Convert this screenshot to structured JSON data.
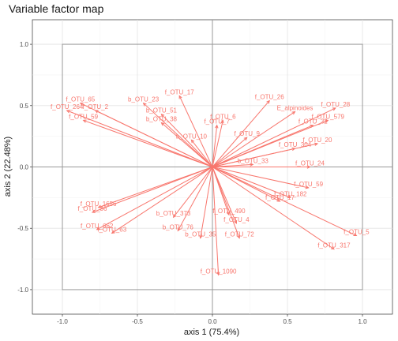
{
  "chart_data": {
    "type": "scatter",
    "title": "Variable factor map",
    "xlabel": "axis 1 (75.4%)",
    "ylabel": "axis 2 (22.48%)",
    "xlim": [
      -1.2,
      1.2
    ],
    "ylim": [
      -1.2,
      1.2
    ],
    "x_ticks": [
      -1.0,
      -0.5,
      0.0,
      0.5,
      1.0
    ],
    "y_ticks": [
      -1.0,
      -0.5,
      0.0,
      0.5,
      1.0
    ],
    "x_tick_labels": [
      "-1.0",
      "-0.5",
      "0.0",
      "0.5",
      "1.0"
    ],
    "y_tick_labels": [
      "-1.0",
      "-0.5",
      "0.0",
      "0.5",
      "1.0"
    ],
    "grid": true,
    "arrow_color": "#f8766d",
    "frame_color": "#999999",
    "variables": [
      {
        "label": "f_OTU_65",
        "x": -0.88,
        "y": 0.52
      },
      {
        "label": "f_OTU_264",
        "x": -0.97,
        "y": 0.46
      },
      {
        "label": "f_OTU_2",
        "x": -0.78,
        "y": 0.46
      },
      {
        "label": "f_OTU_59",
        "x": -0.86,
        "y": 0.38
      },
      {
        "label": "b_OTU_23",
        "x": -0.46,
        "y": 0.52
      },
      {
        "label": "b_OTU_51",
        "x": -0.34,
        "y": 0.43
      },
      {
        "label": "b_OTU_38",
        "x": -0.34,
        "y": 0.36
      },
      {
        "label": "f_OTU_17",
        "x": -0.22,
        "y": 0.58
      },
      {
        "label": "f_OTU_6",
        "x": 0.07,
        "y": 0.38
      },
      {
        "label": "f_OTU_7",
        "x": 0.03,
        "y": 0.34
      },
      {
        "label": "f_OTU_26",
        "x": 0.38,
        "y": 0.54
      },
      {
        "label": "f_OTU_28",
        "x": 0.82,
        "y": 0.48
      },
      {
        "label": "E_alpinoides",
        "x": 0.55,
        "y": 0.45
      },
      {
        "label": "f_OTU_579",
        "x": 0.77,
        "y": 0.38
      },
      {
        "label": "f_OTU_32",
        "x": 0.67,
        "y": 0.34
      },
      {
        "label": "f_OTU_20",
        "x": 0.7,
        "y": 0.19
      },
      {
        "label": "f_OTU_304",
        "x": 0.55,
        "y": 0.15
      },
      {
        "label": "f_OTU_24",
        "x": 0.65,
        "y": 0.0
      },
      {
        "label": "f_OTU_59",
        "x": 0.64,
        "y": -0.17
      },
      {
        "label": "f_OTU_182",
        "x": 0.52,
        "y": -0.25
      },
      {
        "label": "f_OTU_5",
        "x": 0.96,
        "y": -0.56
      },
      {
        "label": "f_OTU_317",
        "x": 0.81,
        "y": -0.67
      },
      {
        "label": "f_OTU_1090",
        "x": 0.04,
        "y": -0.88
      },
      {
        "label": "f_OTU_72",
        "x": 0.18,
        "y": -0.58
      },
      {
        "label": "b_OTU_35",
        "x": -0.08,
        "y": -0.58
      },
      {
        "label": "f_OTU_4",
        "x": 0.16,
        "y": -0.46
      },
      {
        "label": "f_OTU_490",
        "x": 0.11,
        "y": -0.39
      },
      {
        "label": "f_OTU_1656",
        "x": -0.76,
        "y": -0.33
      },
      {
        "label": "f_OTU_36",
        "x": -0.8,
        "y": -0.37
      },
      {
        "label": "f_OTU_662",
        "x": -0.77,
        "y": -0.51
      },
      {
        "label": "f_OTU_63",
        "x": -0.67,
        "y": -0.54
      },
      {
        "label": "b_OTU_76",
        "x": -0.23,
        "y": -0.52
      },
      {
        "label": "b_OTU_373",
        "x": -0.26,
        "y": -0.41
      },
      {
        "label": "b_OTU_10",
        "x": -0.14,
        "y": 0.22
      },
      {
        "label": "f_OTU_9",
        "x": 0.23,
        "y": 0.24
      },
      {
        "label": "b_OTU_33",
        "x": 0.27,
        "y": 0.02
      },
      {
        "label": "f_OTU_17",
        "x": 0.45,
        "y": -0.28
      }
    ]
  }
}
